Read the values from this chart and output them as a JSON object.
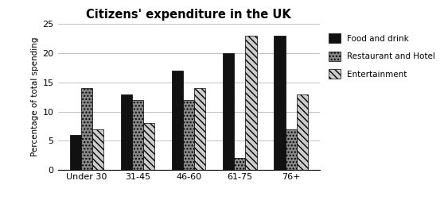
{
  "title": "Citizens' expenditure in the UK",
  "ylabel": "Percentage of total spending",
  "categories": [
    "Under 30",
    "31-45",
    "46-60",
    "61-75",
    "76+"
  ],
  "series": {
    "Food and drink": [
      6,
      13,
      17,
      20,
      23
    ],
    "Restaurant and Hotel": [
      14,
      12,
      12,
      2,
      7
    ],
    "Entertainment": [
      7,
      8,
      14,
      23,
      13
    ]
  },
  "colors": {
    "Food and drink": "#111111",
    "Restaurant and Hotel": "#888888",
    "Entertainment": "#cccccc"
  },
  "hatches": {
    "Food and drink": "",
    "Restaurant and Hotel": "....",
    "Entertainment": "\\\\\\\\"
  },
  "ylim": [
    0,
    25
  ],
  "yticks": [
    0,
    5,
    10,
    15,
    20,
    25
  ],
  "bar_width": 0.22,
  "figsize": [
    5.58,
    2.52
  ],
  "dpi": 100
}
